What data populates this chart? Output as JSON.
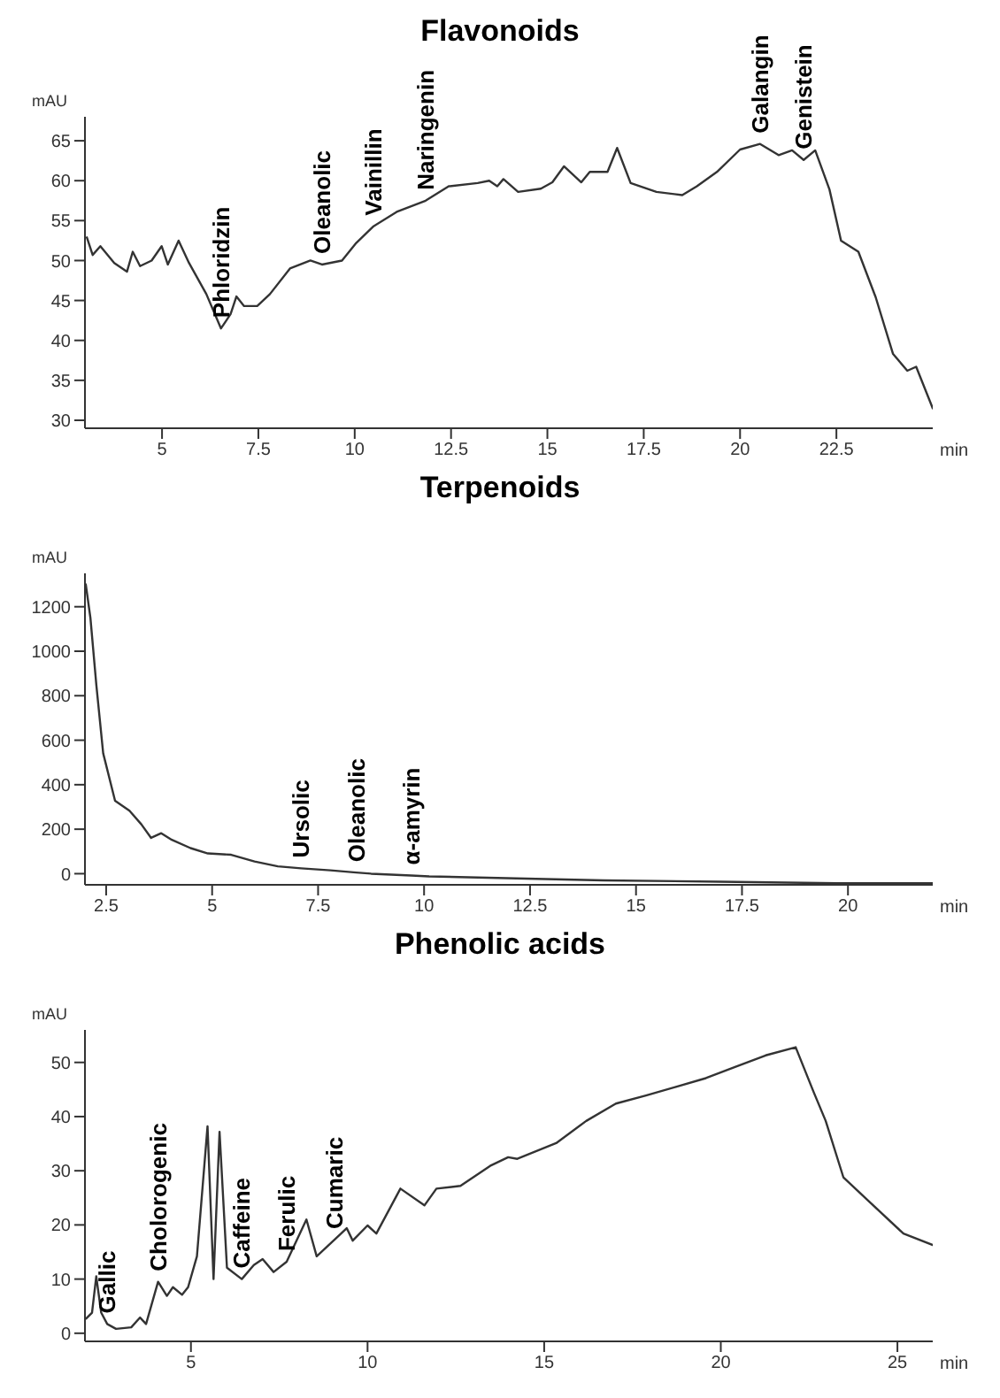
{
  "chart_data": [
    {
      "type": "line",
      "title": "Flavonoids",
      "xlabel": "min",
      "ylabel": "mAU",
      "xlim": [
        3,
        25
      ],
      "xticks": [
        5,
        7.5,
        10,
        12.5,
        15,
        17.5,
        20,
        22.5
      ],
      "ylim": [
        29,
        68
      ],
      "yticks": [
        30,
        35,
        40,
        45,
        50,
        55,
        60,
        65
      ],
      "grid": false,
      "legend": false,
      "marker": "none",
      "line_style": "solid",
      "x": [
        3.05,
        3.2,
        3.4,
        3.76,
        4.09,
        4.24,
        4.43,
        4.73,
        4.99,
        5.15,
        5.43,
        5.7,
        6.15,
        6.53,
        6.78,
        6.93,
        7.13,
        7.47,
        7.8,
        8.32,
        8.85,
        9.15,
        9.67,
        10.04,
        10.49,
        11.09,
        11.84,
        12.44,
        13.19,
        13.49,
        13.7,
        13.86,
        14.24,
        14.83,
        15.13,
        15.43,
        15.88,
        16.1,
        16.56,
        16.81,
        17.16,
        17.83,
        18.5,
        18.88,
        19.4,
        20.0,
        20.52,
        21.0,
        21.35,
        21.65,
        21.95,
        22.32,
        22.62,
        23.07,
        23.52,
        23.97,
        24.34,
        24.57,
        25.0
      ],
      "series": [
        {
          "color": "#333333",
          "values": [
            52.9,
            50.7,
            51.8,
            49.7,
            48.6,
            51.1,
            49.3,
            50.0,
            51.8,
            49.5,
            52.5,
            49.7,
            45.8,
            41.5,
            43.3,
            45.5,
            44.3,
            44.3,
            45.8,
            49.0,
            50.0,
            49.5,
            50.0,
            52.2,
            54.3,
            56.1,
            57.5,
            59.3,
            59.7,
            60.0,
            59.3,
            60.2,
            58.6,
            59.0,
            59.8,
            61.8,
            59.8,
            61.1,
            61.1,
            64.1,
            59.7,
            58.6,
            58.2,
            59.3,
            61.1,
            63.9,
            64.6,
            63.2,
            63.8,
            62.6,
            63.8,
            58.9,
            52.5,
            51.1,
            45.4,
            38.3,
            36.2,
            36.7,
            31.5
          ]
        }
      ],
      "annotations": [
        {
          "text": "Phloridzin",
          "x": 6.53,
          "y": 41.5
        },
        {
          "text": "Oleanolic",
          "x": 9.15,
          "y": 49.5
        },
        {
          "text": "Vainillin",
          "x": 10.49,
          "y": 54.3
        },
        {
          "text": "Naringenin",
          "x": 11.84,
          "y": 57.5
        },
        {
          "text": "Galangin",
          "x": 20.52,
          "y": 64.6
        },
        {
          "text": "Genistein",
          "x": 21.65,
          "y": 62.6
        }
      ]
    },
    {
      "type": "line",
      "title": "Terpenoids",
      "xlabel": "min",
      "ylabel": "mAU",
      "xlim": [
        2,
        22
      ],
      "xticks": [
        2.5,
        5,
        7.5,
        10,
        12.5,
        15,
        17.5,
        20
      ],
      "ylim": [
        -50,
        1350
      ],
      "yticks": [
        0,
        200,
        400,
        600,
        800,
        1000,
        1200
      ],
      "grid": false,
      "legend": false,
      "marker": "none",
      "line_style": "solid",
      "x": [
        2.02,
        2.13,
        2.27,
        2.43,
        2.71,
        3.05,
        3.33,
        3.56,
        3.8,
        4.05,
        4.49,
        4.9,
        5.45,
        6.0,
        6.55,
        7.1,
        7.79,
        8.4,
        8.75,
        9.7,
        10.12,
        12.18,
        14.24,
        16.99,
        19.74,
        22.0
      ],
      "series": [
        {
          "color": "#333333",
          "values": [
            1300,
            1148,
            845,
            541,
            328,
            283,
            222,
            161,
            182,
            152,
            115,
            91,
            85,
            55,
            33,
            24,
            15,
            5,
            0,
            -8,
            -12,
            -21,
            -30,
            -36,
            -43,
            -43
          ]
        }
      ],
      "annotations": [
        {
          "text": "Ursolic",
          "x": 7.1,
          "y": 24
        },
        {
          "text": "Oleanolic",
          "x": 8.4,
          "y": 5
        },
        {
          "text": "α-amyrin",
          "x": 9.7,
          "y": -8
        }
      ]
    },
    {
      "type": "line",
      "title": "Phenolic acids",
      "xlabel": "min",
      "ylabel": "mAU",
      "xlim": [
        2,
        26
      ],
      "xticks": [
        5,
        10,
        15,
        20,
        25
      ],
      "ylim": [
        -1.5,
        56
      ],
      "yticks": [
        0,
        10,
        20,
        30,
        40,
        50
      ],
      "grid": false,
      "legend": false,
      "marker": "none",
      "line_style": "solid",
      "x": [
        2.03,
        2.2,
        2.32,
        2.46,
        2.63,
        2.88,
        3.31,
        3.56,
        3.73,
        4.07,
        4.32,
        4.49,
        4.75,
        4.92,
        5.17,
        5.47,
        5.64,
        5.81,
        6.02,
        6.44,
        6.78,
        7.03,
        7.34,
        7.71,
        8.27,
        8.56,
        9.07,
        9.41,
        9.58,
        10.0,
        10.25,
        10.93,
        11.61,
        11.95,
        12.63,
        13.47,
        13.98,
        14.24,
        15.34,
        16.19,
        17.03,
        17.88,
        18.73,
        19.58,
        20.42,
        21.27,
        22.12,
        22.63,
        22.97,
        23.47,
        24.15,
        25.17,
        26.0
      ],
      "series": [
        {
          "color": "#333333",
          "values": [
            2.7,
            3.8,
            10.5,
            3.8,
            1.7,
            0.8,
            1.1,
            2.9,
            1.7,
            9.5,
            6.9,
            8.5,
            7.1,
            8.5,
            14.2,
            38.2,
            10.0,
            37.2,
            12.1,
            10.0,
            12.6,
            13.7,
            11.3,
            13.2,
            21.0,
            14.2,
            17.3,
            19.4,
            17.1,
            19.9,
            18.4,
            26.7,
            23.6,
            26.7,
            27.2,
            30.9,
            32.5,
            32.2,
            35.1,
            39.2,
            42.4,
            43.9,
            45.5,
            47.1,
            49.2,
            51.3,
            52.8,
            44.5,
            39.2,
            28.8,
            24.6,
            18.4,
            16.3
          ]
        }
      ],
      "annotations": [
        {
          "text": "Gallic",
          "x": 2.63,
          "y": 1.7
        },
        {
          "text": "Cholorogenic",
          "x": 4.07,
          "y": 9.5
        },
        {
          "text": "Caffeine",
          "x": 6.44,
          "y": 10.0
        },
        {
          "text": "Ferulic",
          "x": 7.71,
          "y": 13.2
        },
        {
          "text": "Cumaric",
          "x": 9.07,
          "y": 17.3
        }
      ]
    }
  ]
}
